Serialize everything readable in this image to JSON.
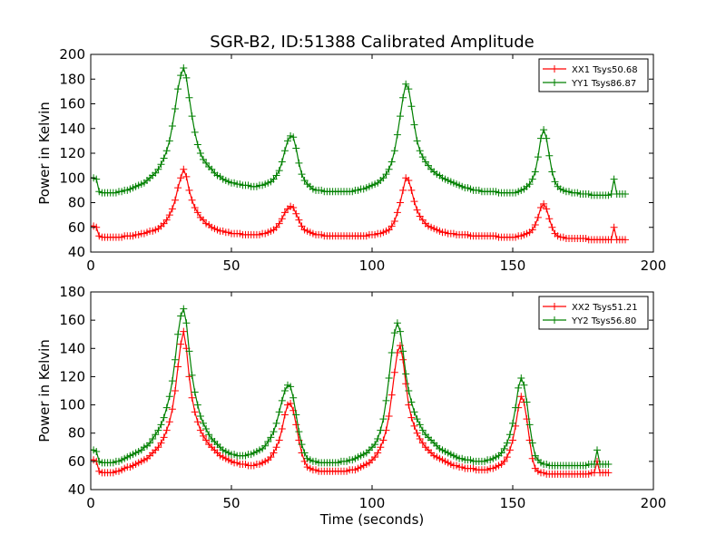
{
  "figure": {
    "title": "SGR-B2, ID:51388 Calibrated Amplitude"
  },
  "colors": {
    "red": "#ff0000",
    "green": "#008000"
  },
  "chart_data": [
    {
      "type": "line",
      "xlabel": "",
      "ylabel": "Power in Kelvin",
      "xlim": [
        0,
        200
      ],
      "ylim": [
        40,
        200
      ],
      "xticks": [
        0,
        50,
        100,
        150,
        200
      ],
      "yticks": [
        40,
        60,
        80,
        100,
        120,
        140,
        160,
        180,
        200
      ],
      "legend_position": "top-right",
      "x_start": 0,
      "x_step": 1,
      "series": [
        {
          "name": "XX1 Tsys50.68",
          "color": "#ff0000",
          "values": [
            61,
            61,
            60,
            53,
            52,
            52,
            52,
            52,
            52,
            52,
            52,
            52,
            53,
            53,
            53,
            53,
            54,
            54,
            55,
            55,
            56,
            57,
            57,
            58,
            59,
            61,
            63,
            66,
            70,
            75,
            82,
            92,
            100,
            107,
            101,
            90,
            82,
            76,
            72,
            68,
            66,
            63,
            62,
            60,
            59,
            58,
            57,
            57,
            56,
            56,
            55,
            55,
            55,
            55,
            54,
            54,
            54,
            54,
            54,
            54,
            54,
            55,
            55,
            56,
            57,
            58,
            60,
            63,
            67,
            72,
            75,
            77,
            76,
            71,
            66,
            61,
            58,
            57,
            56,
            55,
            54,
            54,
            54,
            53,
            53,
            53,
            53,
            53,
            53,
            53,
            53,
            53,
            53,
            53,
            53,
            53,
            53,
            53,
            53,
            54,
            54,
            54,
            55,
            55,
            56,
            57,
            58,
            61,
            65,
            72,
            80,
            90,
            100,
            98,
            90,
            81,
            74,
            69,
            66,
            63,
            61,
            60,
            59,
            58,
            57,
            56,
            56,
            55,
            55,
            55,
            54,
            54,
            54,
            54,
            54,
            53,
            53,
            53,
            53,
            53,
            53,
            53,
            53,
            53,
            53,
            52,
            52,
            52,
            52,
            52,
            52,
            52,
            53,
            53,
            54,
            55,
            56,
            58,
            62,
            68,
            76,
            79,
            75,
            67,
            60,
            55,
            53,
            52,
            52,
            51,
            51,
            51,
            51,
            51,
            51,
            51,
            51,
            50,
            50,
            50,
            50,
            50,
            50,
            50,
            50,
            50,
            60,
            50,
            50,
            50,
            50
          ]
        },
        {
          "name": "YY1 Tsys86.87",
          "color": "#008000",
          "values": [
            100,
            100,
            99,
            89,
            88,
            88,
            88,
            88,
            88,
            88,
            89,
            89,
            90,
            90,
            91,
            92,
            93,
            94,
            95,
            96,
            98,
            100,
            102,
            104,
            107,
            111,
            116,
            122,
            130,
            142,
            156,
            172,
            183,
            189,
            181,
            165,
            150,
            137,
            127,
            120,
            115,
            112,
            109,
            107,
            104,
            102,
            101,
            99,
            98,
            97,
            96,
            96,
            95,
            95,
            94,
            94,
            94,
            93,
            93,
            93,
            94,
            94,
            95,
            96,
            97,
            99,
            102,
            106,
            113,
            122,
            130,
            134,
            133,
            124,
            112,
            103,
            98,
            95,
            93,
            91,
            90,
            90,
            90,
            89,
            89,
            89,
            89,
            89,
            89,
            89,
            89,
            89,
            89,
            89,
            90,
            90,
            91,
            91,
            92,
            93,
            94,
            95,
            96,
            98,
            100,
            103,
            107,
            113,
            122,
            135,
            150,
            165,
            176,
            172,
            158,
            143,
            130,
            122,
            117,
            113,
            110,
            107,
            105,
            103,
            102,
            100,
            99,
            98,
            97,
            96,
            95,
            94,
            93,
            92,
            92,
            91,
            90,
            90,
            90,
            89,
            89,
            89,
            89,
            89,
            89,
            88,
            88,
            88,
            88,
            88,
            88,
            88,
            89,
            90,
            91,
            93,
            95,
            99,
            105,
            117,
            132,
            139,
            132,
            118,
            105,
            97,
            93,
            91,
            90,
            89,
            89,
            88,
            88,
            88,
            87,
            87,
            87,
            87,
            86,
            86,
            86,
            86,
            86,
            86,
            86,
            87,
            99,
            87,
            87,
            87,
            87
          ]
        }
      ]
    },
    {
      "type": "line",
      "xlabel": "Time (seconds)",
      "ylabel": "Power in Kelvin",
      "xlim": [
        0,
        200
      ],
      "ylim": [
        40,
        180
      ],
      "xticks": [
        0,
        50,
        100,
        150,
        200
      ],
      "yticks": [
        40,
        60,
        80,
        100,
        120,
        140,
        160,
        180
      ],
      "legend_position": "top-right",
      "x_start": 0,
      "x_step": 1,
      "series": [
        {
          "name": "XX2 Tsys51.21",
          "color": "#ff0000",
          "values": [
            61,
            61,
            60,
            53,
            52,
            52,
            52,
            52,
            52,
            53,
            53,
            54,
            55,
            56,
            56,
            57,
            58,
            59,
            60,
            61,
            62,
            64,
            66,
            68,
            70,
            73,
            77,
            82,
            88,
            97,
            110,
            127,
            143,
            152,
            140,
            120,
            105,
            95,
            88,
            82,
            78,
            75,
            72,
            70,
            68,
            66,
            64,
            63,
            62,
            61,
            60,
            59,
            59,
            58,
            58,
            58,
            57,
            57,
            57,
            58,
            58,
            59,
            60,
            61,
            63,
            66,
            70,
            75,
            83,
            93,
            100,
            101,
            96,
            86,
            75,
            66,
            60,
            56,
            55,
            54,
            54,
            53,
            53,
            53,
            53,
            53,
            53,
            53,
            53,
            53,
            53,
            53,
            54,
            54,
            54,
            55,
            56,
            57,
            58,
            59,
            61,
            63,
            66,
            70,
            75,
            82,
            92,
            107,
            123,
            137,
            142,
            132,
            115,
            100,
            91,
            85,
            80,
            76,
            73,
            70,
            68,
            66,
            64,
            63,
            62,
            61,
            60,
            59,
            58,
            57,
            57,
            56,
            56,
            55,
            55,
            55,
            55,
            54,
            54,
            54,
            54,
            54,
            55,
            55,
            56,
            57,
            58,
            60,
            63,
            68,
            75,
            85,
            98,
            106,
            102,
            90,
            75,
            62,
            55,
            53,
            52,
            52,
            51,
            51,
            51,
            51,
            51,
            51,
            51,
            51,
            51,
            51,
            51,
            51,
            51,
            51,
            51,
            51,
            52,
            52,
            60,
            52,
            52,
            52,
            52
          ]
        },
        {
          "name": "YY2 Tsys56.80",
          "color": "#008000",
          "values": [
            68,
            68,
            67,
            60,
            59,
            59,
            59,
            59,
            59,
            60,
            60,
            61,
            62,
            63,
            64,
            65,
            66,
            67,
            68,
            70,
            71,
            73,
            76,
            79,
            82,
            86,
            91,
            98,
            106,
            117,
            132,
            150,
            163,
            168,
            158,
            138,
            121,
            109,
            100,
            92,
            87,
            83,
            79,
            76,
            74,
            72,
            70,
            68,
            67,
            66,
            65,
            65,
            64,
            64,
            64,
            64,
            65,
            65,
            66,
            67,
            68,
            69,
            71,
            74,
            77,
            81,
            87,
            95,
            103,
            110,
            114,
            113,
            105,
            93,
            81,
            72,
            66,
            62,
            61,
            60,
            60,
            59,
            59,
            59,
            59,
            59,
            59,
            59,
            59,
            60,
            60,
            60,
            61,
            61,
            62,
            63,
            64,
            65,
            66,
            68,
            70,
            72,
            76,
            82,
            90,
            103,
            119,
            137,
            151,
            158,
            152,
            138,
            122,
            110,
            102,
            95,
            90,
            86,
            82,
            79,
            77,
            75,
            73,
            71,
            69,
            68,
            67,
            66,
            65,
            64,
            63,
            62,
            62,
            61,
            61,
            61,
            60,
            60,
            60,
            60,
            60,
            61,
            61,
            62,
            63,
            64,
            66,
            69,
            73,
            79,
            87,
            98,
            112,
            119,
            114,
            102,
            86,
            73,
            64,
            61,
            59,
            58,
            58,
            57,
            57,
            57,
            57,
            57,
            57,
            57,
            57,
            57,
            57,
            57,
            57,
            57,
            57,
            58,
            58,
            58,
            68,
            58,
            58,
            58,
            58
          ]
        }
      ]
    }
  ]
}
